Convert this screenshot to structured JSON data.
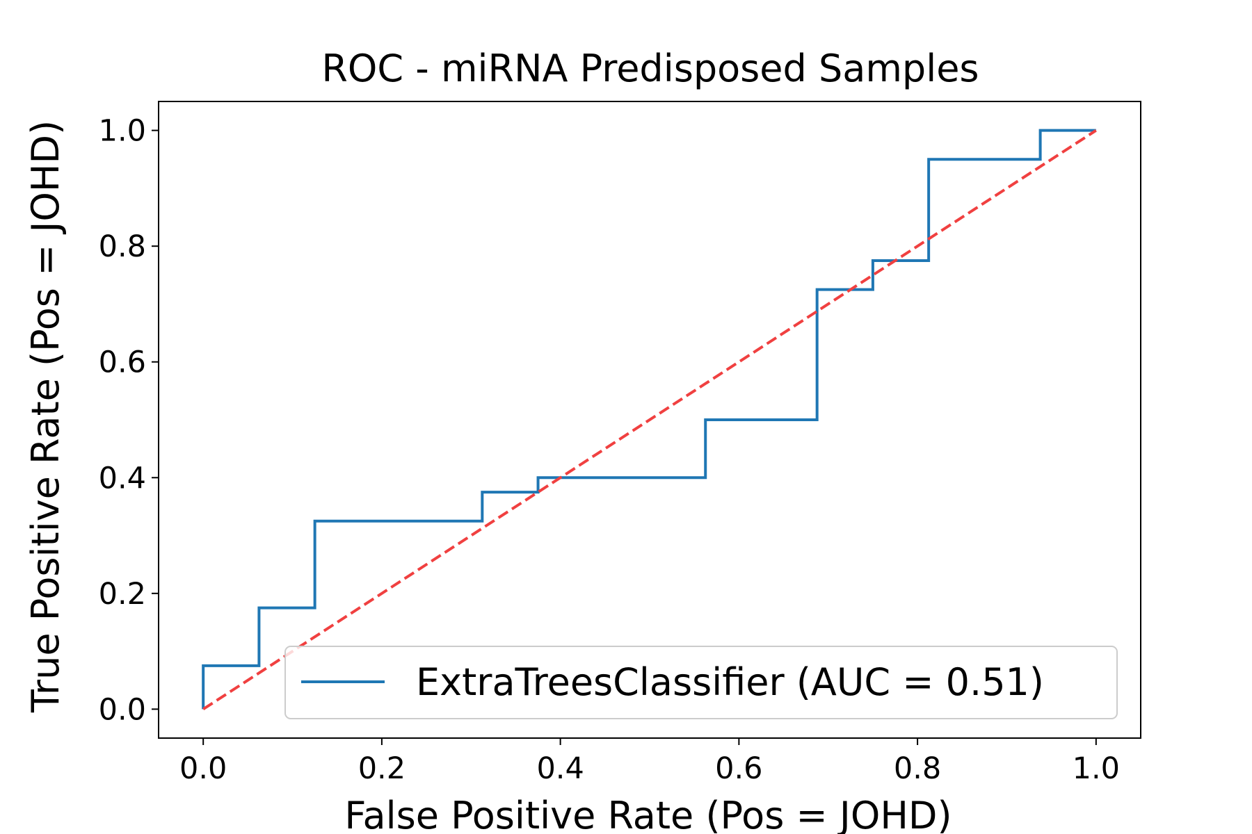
{
  "chart_data": {
    "type": "line",
    "title": "ROC - miRNA Predisposed Samples",
    "xlabel": "False Positive Rate (Pos = JOHD)",
    "ylabel": "True Positive Rate (Pos = JOHD)",
    "xlim": [
      -0.05,
      1.05
    ],
    "ylim": [
      -0.05,
      1.05
    ],
    "xticks": [
      0.0,
      0.2,
      0.4,
      0.6,
      0.8,
      1.0
    ],
    "xtick_labels": [
      "0.0",
      "0.2",
      "0.4",
      "0.6",
      "0.8",
      "1.0"
    ],
    "yticks": [
      0.0,
      0.2,
      0.4,
      0.6,
      0.8,
      1.0
    ],
    "ytick_labels": [
      "0.0",
      "0.2",
      "0.4",
      "0.6",
      "0.8",
      "1.0"
    ],
    "grid": false,
    "legend_position": "lower-right",
    "series": [
      {
        "name": "ExtraTreesClassifier (AUC = 0.51)",
        "color": "#1f77b4",
        "style": "steps",
        "x": [
          0.0,
          0.0,
          0.0625,
          0.0625,
          0.125,
          0.125,
          0.3125,
          0.3125,
          0.375,
          0.375,
          0.5625,
          0.5625,
          0.6875,
          0.6875,
          0.75,
          0.75,
          0.8125,
          0.8125,
          0.9375,
          0.9375,
          1.0
        ],
        "y": [
          0.0,
          0.075,
          0.075,
          0.175,
          0.175,
          0.325,
          0.325,
          0.375,
          0.375,
          0.4,
          0.4,
          0.5,
          0.5,
          0.725,
          0.725,
          0.775,
          0.775,
          0.95,
          0.95,
          1.0,
          1.0
        ]
      },
      {
        "color": "#f04040",
        "style": "dashed",
        "x": [
          0.0,
          1.0
        ],
        "y": [
          0.0,
          1.0
        ]
      }
    ]
  }
}
